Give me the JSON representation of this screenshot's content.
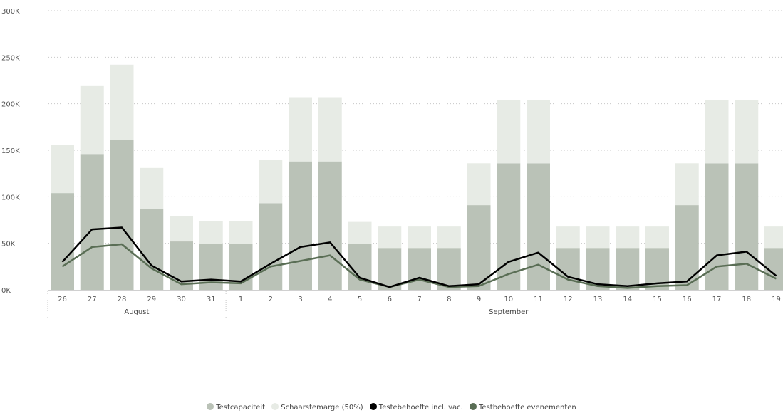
{
  "chart_data": {
    "type": "bar",
    "title": "",
    "xlabel": "",
    "ylabel": "",
    "ylim": [
      0,
      300000
    ],
    "y_ticks": [
      "0K",
      "50K",
      "100K",
      "150K",
      "200K",
      "250K",
      "300K"
    ],
    "categories": [
      "26",
      "27",
      "28",
      "29",
      "30",
      "31",
      "1",
      "2",
      "3",
      "4",
      "5",
      "6",
      "7",
      "8",
      "9",
      "10",
      "11",
      "12",
      "13",
      "14",
      "15",
      "16",
      "17",
      "18",
      "19"
    ],
    "months": [
      {
        "label": "August",
        "start": 0,
        "end": 5
      },
      {
        "label": "September",
        "start": 6,
        "end": 24
      }
    ],
    "grid": true,
    "legend_position": "bottom",
    "series": [
      {
        "name": "Testcapaciteit",
        "kind": "bar",
        "color": "#bac2b7",
        "values": [
          104000,
          146000,
          161000,
          87000,
          52000,
          49000,
          49000,
          93000,
          138000,
          138000,
          49000,
          45000,
          45000,
          45000,
          91000,
          136000,
          136000,
          45000,
          45000,
          45000,
          45000,
          91000,
          136000,
          136000,
          45000
        ]
      },
      {
        "name": "Schaarstemarge (50%)",
        "kind": "bar",
        "color": "#e7ebe5",
        "values": [
          52000,
          73000,
          81000,
          44000,
          27000,
          25000,
          25000,
          47000,
          69000,
          69000,
          24000,
          23000,
          23000,
          23000,
          45000,
          68000,
          68000,
          23000,
          23000,
          23000,
          23000,
          45000,
          68000,
          68000,
          23000
        ]
      },
      {
        "name": "Testebehoefte incl. vac.",
        "kind": "line",
        "color": "#000000",
        "values": [
          30000,
          65000,
          67000,
          26000,
          9000,
          11000,
          9000,
          28000,
          46000,
          51000,
          13000,
          3000,
          13000,
          4000,
          6000,
          30000,
          40000,
          14000,
          6000,
          4000,
          7000,
          9000,
          37000,
          41000,
          15000
        ]
      },
      {
        "name": "Testbehoefte evenementen",
        "kind": "line",
        "color": "#5a6e55",
        "values": [
          25000,
          46000,
          49000,
          23000,
          6000,
          8000,
          7000,
          25000,
          31000,
          37000,
          11000,
          3000,
          11000,
          3000,
          4000,
          17000,
          27000,
          11000,
          4000,
          2000,
          4000,
          5000,
          25000,
          28000,
          12000
        ]
      }
    ]
  }
}
